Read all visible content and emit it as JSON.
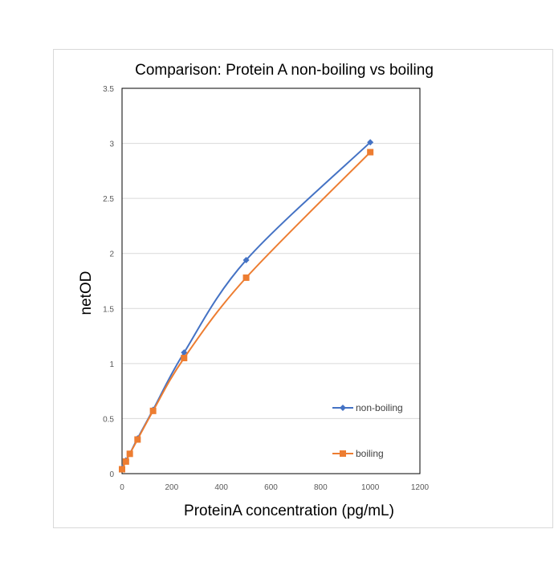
{
  "chart_data": {
    "type": "line",
    "title": "Comparison:  Protein A non-boiling  vs boiling",
    "xlabel": "ProteinA concentration (pg/mL)",
    "ylabel": "netOD",
    "xlim": [
      0,
      1200
    ],
    "ylim": [
      0,
      3.5
    ],
    "xticks": [
      "0",
      "200",
      "400",
      "600",
      "800",
      "1000",
      "1200"
    ],
    "yticks": [
      "0",
      "0.5",
      "1",
      "1.5",
      "2",
      "2.5",
      "3",
      "3.5"
    ],
    "grid": true,
    "legend_position": "right-inside",
    "series": [
      {
        "name": "non-boiling",
        "color": "#4472C4",
        "marker": "diamond",
        "x": [
          0,
          15.6,
          31.25,
          62.5,
          125,
          250,
          500,
          1000
        ],
        "y": [
          0.05,
          0.12,
          0.18,
          0.32,
          0.58,
          1.1,
          1.94,
          3.01
        ]
      },
      {
        "name": "boiling",
        "color": "#ED7D31",
        "marker": "square",
        "x": [
          0,
          15.6,
          31.25,
          62.5,
          125,
          250,
          500,
          1000
        ],
        "y": [
          0.04,
          0.11,
          0.18,
          0.31,
          0.57,
          1.05,
          1.78,
          2.92
        ]
      }
    ]
  }
}
